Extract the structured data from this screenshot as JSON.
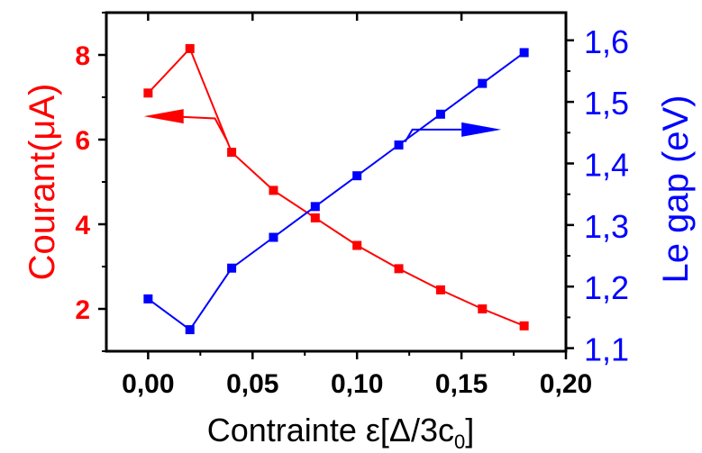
{
  "chart_data": {
    "type": "line",
    "x_axis": {
      "label_main": "Contrainte ε[Δ/3c",
      "label_subscript": "0",
      "label_close": "]",
      "range": [
        -0.02,
        0.2
      ],
      "ticks": [
        0.0,
        0.05,
        0.1,
        0.15,
        0.2
      ],
      "tick_labels": [
        "0,00",
        "0,05",
        "0,10",
        "0,15",
        "0,20"
      ]
    },
    "y_left": {
      "label": "Courant(μA)",
      "range": [
        1.0,
        9.0
      ],
      "ticks": [
        2,
        4,
        6,
        8
      ],
      "tick_labels": [
        "2",
        "4",
        "6",
        "8"
      ],
      "color": "#ff0000"
    },
    "y_right": {
      "label": "Le gap (eV)",
      "range": [
        1.095,
        1.645
      ],
      "ticks": [
        1.1,
        1.2,
        1.3,
        1.4,
        1.5,
        1.6
      ],
      "tick_labels": [
        "1,1",
        "1,2",
        "1,3",
        "1,4",
        "1,5",
        "1,6"
      ],
      "color": "#0000ff"
    },
    "series": [
      {
        "axis": "left",
        "color": "#ff0000",
        "x": [
          0.0,
          0.02,
          0.04,
          0.06,
          0.08,
          0.1,
          0.12,
          0.14,
          0.16,
          0.18
        ],
        "y": [
          7.1,
          8.15,
          5.7,
          4.8,
          4.15,
          3.5,
          2.95,
          2.45,
          2.0,
          1.6
        ]
      },
      {
        "axis": "right",
        "color": "#0000ff",
        "x": [
          0.0,
          0.02,
          0.04,
          0.06,
          0.08,
          0.1,
          0.12,
          0.14,
          0.16,
          0.18
        ],
        "y": [
          1.18,
          1.13,
          1.23,
          1.28,
          1.33,
          1.38,
          1.43,
          1.48,
          1.53,
          1.58
        ]
      }
    ],
    "annotations": [
      {
        "type": "arrow",
        "color": "#ff0000",
        "direction": "left",
        "points_to": "left-axis"
      },
      {
        "type": "arrow",
        "color": "#0000ff",
        "direction": "right",
        "points_to": "right-axis"
      }
    ],
    "grid": false,
    "legend": "none"
  }
}
